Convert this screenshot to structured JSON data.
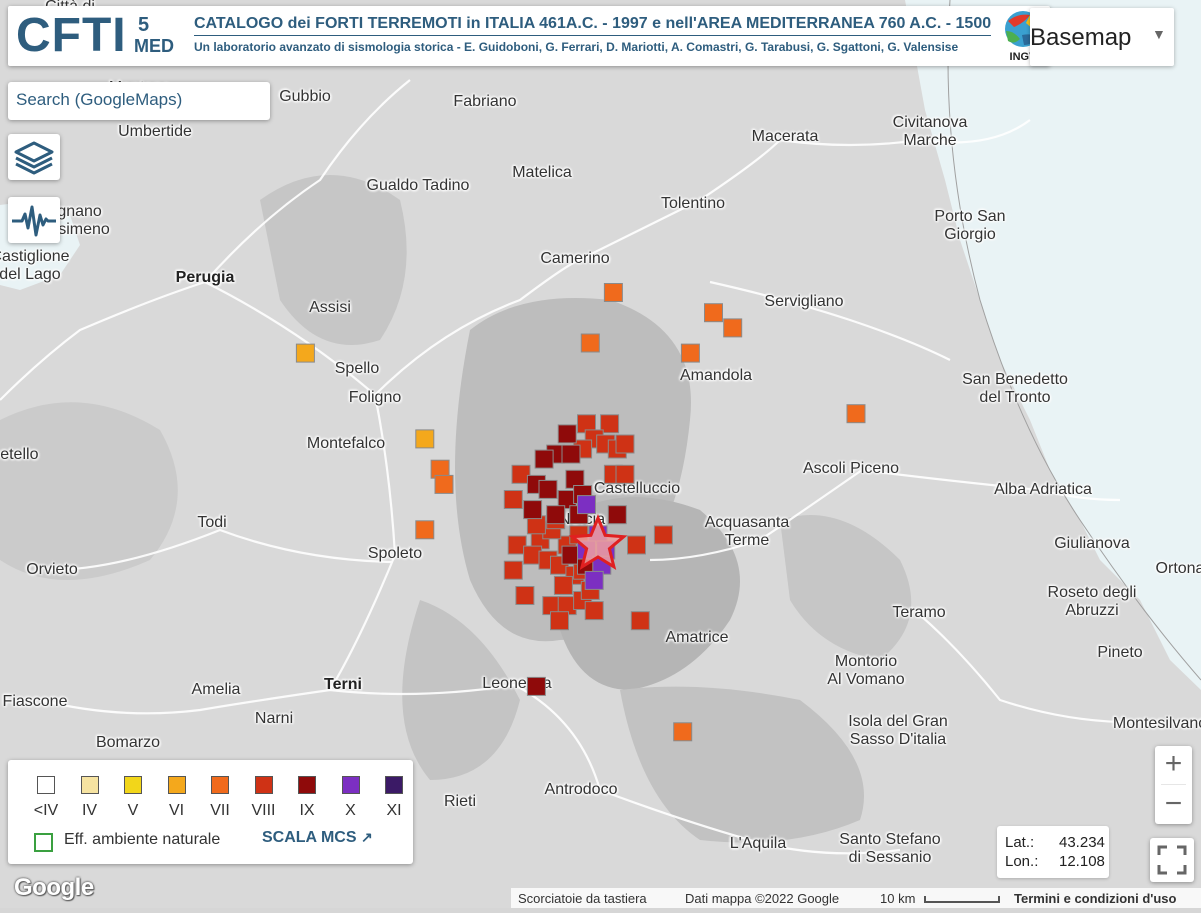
{
  "header": {
    "logo": "CFTI",
    "logo_sup": "5",
    "logo_sub": "MED",
    "title": "CATALOGO dei FORTI TERREMOTI in ITALIA 461A.C. - 1997 e nell'AREA MEDITERRANEA 760 A.C. - 1500",
    "subtitle": "Un laboratorio avanzato di sismologia storica - E. Guidoboni, G. Ferrari, D. Mariotti, A. Comastri, G. Tarabusi, G. Sgattoni, G. Valensise",
    "ingv_label": "INGV"
  },
  "basemap": {
    "label": "Basemap"
  },
  "search": {
    "placeholder": "Search (GoogleMaps)"
  },
  "toolbar": {
    "layers_icon": "layers-icon",
    "seismogram_icon": "seismogram-icon"
  },
  "places": [
    {
      "name": "Città di",
      "line2": ""
    },
    {
      "name": "Gubbio"
    },
    {
      "name": "Fabriano"
    },
    {
      "name": "Umbertide"
    },
    {
      "name": "Macerata"
    },
    {
      "name": "Civitanova",
      "line2": "Marche"
    },
    {
      "name": "Matelica"
    },
    {
      "name": "Gualdo Tadino"
    },
    {
      "name": "Tolentino"
    },
    {
      "name": "Passignano",
      "line2": "sul Trasimeno"
    },
    {
      "name": "Porto San",
      "line2": "Giorgio"
    },
    {
      "name": "Castiglione",
      "line2": "del Lago"
    },
    {
      "name": "Perugia"
    },
    {
      "name": "Camerino"
    },
    {
      "name": "Assisi"
    },
    {
      "name": "Servigliano"
    },
    {
      "name": "Spello"
    },
    {
      "name": "Amandola"
    },
    {
      "name": "Foligno"
    },
    {
      "name": "San Benedetto",
      "line2": "del Tronto"
    },
    {
      "name": "Montefalco"
    },
    {
      "name": "Ascoli Piceno"
    },
    {
      "name": "Castelluccio"
    },
    {
      "name": "Alba Adriatica"
    },
    {
      "name": "Todi"
    },
    {
      "name": "Norcia"
    },
    {
      "name": "Acquasanta",
      "line2": "Terme"
    },
    {
      "name": "Giulianova"
    },
    {
      "name": "Spoleto"
    },
    {
      "name": "Orvieto"
    },
    {
      "name": "Roseto degli",
      "line2": "Abruzzi"
    },
    {
      "name": "Teramo"
    },
    {
      "name": "Amatrice"
    },
    {
      "name": "Pineto"
    },
    {
      "name": "Montorio",
      "line2": "Al Vomano"
    },
    {
      "name": "Orbetello"
    },
    {
      "name": "Amelia"
    },
    {
      "name": "Terni"
    },
    {
      "name": "Leonessa"
    },
    {
      "name": "Isola del Gran",
      "line2": "Sasso D'italia"
    },
    {
      "name": "Montesilvano"
    },
    {
      "name": "Narni"
    },
    {
      "name": "Bomarzo"
    },
    {
      "name": "Rieti"
    },
    {
      "name": "Antrodoco"
    },
    {
      "name": "Santo Stefano",
      "line2": "di Sessanio"
    },
    {
      "name": "L'Aquila"
    },
    {
      "name": "Fiascone"
    },
    {
      "name": "Montone"
    },
    {
      "name": "Ortona"
    }
  ],
  "legend": {
    "classes": [
      {
        "label": "<IV",
        "color": "#ffffff"
      },
      {
        "label": "IV",
        "color": "#f6e3a1"
      },
      {
        "label": "V",
        "color": "#f2d61a"
      },
      {
        "label": "VI",
        "color": "#f4a81c"
      },
      {
        "label": "VII",
        "color": "#f06a1c"
      },
      {
        "label": "VIII",
        "color": "#cf3215"
      },
      {
        "label": "IX",
        "color": "#8f0a0a"
      },
      {
        "label": "X",
        "color": "#7c2fc2"
      },
      {
        "label": "XI",
        "color": "#3b1a66"
      }
    ],
    "env_label": "Eff. ambiente naturale",
    "scale_link": "SCALA MCS"
  },
  "zoom": {
    "plus": "+",
    "minus": "−"
  },
  "coords": {
    "lat_label": "Lat.:",
    "lat": "43.234",
    "lon_label": "Lon.:",
    "lon": "12.108"
  },
  "attribution": {
    "shortcuts": "Scorciatoie da tastiera",
    "map_data": "Dati mappa ©2022 Google",
    "scale": "10 km",
    "terms": "Termini e condizioni d'uso"
  },
  "google_logo": "Google",
  "observations": [
    {
      "c": 3,
      "lon": 12.42,
      "lat": 43.11
    },
    {
      "c": 3,
      "lon": 12.73,
      "lat": 42.94
    },
    {
      "c": 4,
      "lon": 13.22,
      "lat": 43.23
    },
    {
      "c": 4,
      "lon": 13.16,
      "lat": 43.13
    },
    {
      "c": 4,
      "lon": 13.48,
      "lat": 43.19
    },
    {
      "c": 4,
      "lon": 13.53,
      "lat": 43.16
    },
    {
      "c": 4,
      "lon": 13.42,
      "lat": 43.11
    },
    {
      "c": 4,
      "lon": 13.85,
      "lat": 42.99
    },
    {
      "c": 4,
      "lon": 12.77,
      "lat": 42.88
    },
    {
      "c": 4,
      "lon": 12.78,
      "lat": 42.85
    },
    {
      "c": 4,
      "lon": 12.73,
      "lat": 42.76
    },
    {
      "c": 4,
      "lon": 13.4,
      "lat": 42.36
    },
    {
      "c": 5,
      "lon": 13.15,
      "lat": 42.97
    },
    {
      "c": 5,
      "lon": 13.21,
      "lat": 42.97
    },
    {
      "c": 5,
      "lon": 13.17,
      "lat": 42.94
    },
    {
      "c": 5,
      "lon": 13.2,
      "lat": 42.93
    },
    {
      "c": 5,
      "lon": 13.23,
      "lat": 42.92
    },
    {
      "c": 5,
      "lon": 13.14,
      "lat": 42.92
    },
    {
      "c": 5,
      "lon": 13.25,
      "lat": 42.93
    },
    {
      "c": 5,
      "lon": 13.22,
      "lat": 42.87
    },
    {
      "c": 5,
      "lon": 13.25,
      "lat": 42.87
    },
    {
      "c": 5,
      "lon": 12.98,
      "lat": 42.87
    },
    {
      "c": 5,
      "lon": 12.96,
      "lat": 42.82
    },
    {
      "c": 5,
      "lon": 13.35,
      "lat": 42.75
    },
    {
      "c": 5,
      "lon": 12.97,
      "lat": 42.73
    },
    {
      "c": 5,
      "lon": 13.03,
      "lat": 42.74
    },
    {
      "c": 5,
      "lon": 13.01,
      "lat": 42.71
    },
    {
      "c": 5,
      "lon": 13.05,
      "lat": 42.7
    },
    {
      "c": 5,
      "lon": 13.08,
      "lat": 42.69
    },
    {
      "c": 5,
      "lon": 13.11,
      "lat": 42.71
    },
    {
      "c": 5,
      "lon": 13.12,
      "lat": 42.67
    },
    {
      "c": 5,
      "lon": 13.09,
      "lat": 42.65
    },
    {
      "c": 5,
      "lon": 13.14,
      "lat": 42.68
    },
    {
      "c": 5,
      "lon": 13.1,
      "lat": 42.73
    },
    {
      "c": 5,
      "lon": 13.06,
      "lat": 42.76
    },
    {
      "c": 5,
      "lon": 13.02,
      "lat": 42.77
    },
    {
      "c": 5,
      "lon": 13.07,
      "lat": 42.78
    },
    {
      "c": 5,
      "lon": 13.13,
      "lat": 42.75
    },
    {
      "c": 5,
      "lon": 12.99,
      "lat": 42.63
    },
    {
      "c": 5,
      "lon": 13.06,
      "lat": 42.61
    },
    {
      "c": 5,
      "lon": 13.1,
      "lat": 42.61
    },
    {
      "c": 5,
      "lon": 13.14,
      "lat": 42.62
    },
    {
      "c": 5,
      "lon": 13.17,
      "lat": 42.6
    },
    {
      "c": 5,
      "lon": 13.16,
      "lat": 42.64
    },
    {
      "c": 5,
      "lon": 13.28,
      "lat": 42.73
    },
    {
      "c": 5,
      "lon": 13.29,
      "lat": 42.58
    },
    {
      "c": 5,
      "lon": 13.08,
      "lat": 42.58
    },
    {
      "c": 5,
      "lon": 12.96,
      "lat": 42.68
    },
    {
      "c": 6,
      "lon": 13.1,
      "lat": 42.95
    },
    {
      "c": 6,
      "lon": 13.07,
      "lat": 42.91
    },
    {
      "c": 6,
      "lon": 13.11,
      "lat": 42.91
    },
    {
      "c": 6,
      "lon": 13.04,
      "lat": 42.9
    },
    {
      "c": 6,
      "lon": 13.02,
      "lat": 42.85
    },
    {
      "c": 6,
      "lon": 13.05,
      "lat": 42.84
    },
    {
      "c": 6,
      "lon": 13.1,
      "lat": 42.82
    },
    {
      "c": 6,
      "lon": 13.12,
      "lat": 42.86
    },
    {
      "c": 6,
      "lon": 13.14,
      "lat": 42.83
    },
    {
      "c": 6,
      "lon": 13.01,
      "lat": 42.8
    },
    {
      "c": 6,
      "lon": 13.07,
      "lat": 42.79
    },
    {
      "c": 6,
      "lon": 13.13,
      "lat": 42.79
    },
    {
      "c": 6,
      "lon": 13.23,
      "lat": 42.79
    },
    {
      "c": 6,
      "lon": 13.11,
      "lat": 42.71
    },
    {
      "c": 6,
      "lon": 13.15,
      "lat": 42.69
    },
    {
      "c": 6,
      "lon": 13.02,
      "lat": 42.45
    },
    {
      "c": 7,
      "lon": 13.15,
      "lat": 42.81
    },
    {
      "c": 7,
      "lon": 13.18,
      "lat": 42.75
    },
    {
      "c": 7,
      "lon": 13.2,
      "lat": 42.72
    },
    {
      "c": 7,
      "lon": 13.15,
      "lat": 42.72
    },
    {
      "c": 7,
      "lon": 13.19,
      "lat": 42.69
    },
    {
      "c": 7,
      "lon": 13.17,
      "lat": 42.66
    }
  ],
  "epicenter": {
    "lon": 13.18,
    "lat": 42.73
  }
}
